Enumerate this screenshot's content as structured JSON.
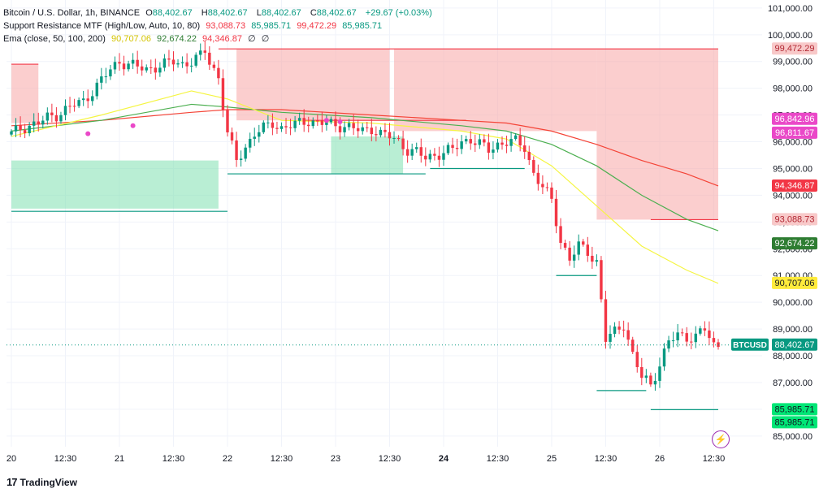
{
  "legend": {
    "line1": {
      "title": "Bitcoin / U.S. Dollar, 1h, BINANCE",
      "o_label": "O",
      "o": "88,402.67",
      "h_label": "H",
      "h": "88,402.67",
      "l_label": "L",
      "l": "88,402.67",
      "c_label": "C",
      "c": "88,402.67",
      "chg": "+29.67 (+0.03%)"
    },
    "line2": {
      "name": "Support Resistance MTF (High/Low, Auto, 10, 80)",
      "v1": "93,088.73",
      "v2": "85,985.71",
      "v3": "99,472.29",
      "v4": "85,985.71"
    },
    "line3": {
      "name": "Ema (close, 50, 100, 200)",
      "v1": "90,707.06",
      "v2": "92,674.22",
      "v3": "94,346.87",
      "v4": "∅",
      "v5": "∅"
    }
  },
  "footer": {
    "brand": "TradingView",
    "logo": "17"
  },
  "colors": {
    "up": "#089981",
    "down": "#f23645",
    "ema50": "#f5f542",
    "ema100": "#4caf50",
    "ema200": "#f44336",
    "res_zone": "#f8a5a5",
    "sup_zone": "#7fe0b0",
    "magenta": "#ea48c8",
    "grid": "#f0f3fa",
    "axis_text": "#131722"
  },
  "chart_data": {
    "type": "candlestick",
    "title": "Bitcoin / U.S. Dollar, 1h, BINANCE",
    "ylim": [
      84600,
      101300
    ],
    "y_ticks": [
      85000,
      86000,
      87000,
      88000,
      89000,
      90000,
      91000,
      92000,
      93000,
      94000,
      95000,
      96000,
      97000,
      98000,
      99000,
      100000,
      101000
    ],
    "y_tick_labels": [
      "85,000.00",
      "86,000.00",
      "87,000.00",
      "88,000.00",
      "89,000.00",
      "90,000.00",
      "91,000.00",
      "92,000.00",
      "93,000.00",
      "94,000.00",
      "95,000.00",
      "96,000.00",
      "97,000.00",
      "98,000.00",
      "99,000.00",
      "100,000.00",
      "101,000.00"
    ],
    "x_ticks": [
      {
        "i": 0,
        "label": "20",
        "bold": false
      },
      {
        "i": 12,
        "label": "12:30",
        "bold": false
      },
      {
        "i": 24,
        "label": "21",
        "bold": false
      },
      {
        "i": 36,
        "label": "12:30",
        "bold": false
      },
      {
        "i": 48,
        "label": "22",
        "bold": false
      },
      {
        "i": 60,
        "label": "12:30",
        "bold": false
      },
      {
        "i": 72,
        "label": "23",
        "bold": false
      },
      {
        "i": 84,
        "label": "12:30",
        "bold": false
      },
      {
        "i": 96,
        "label": "24",
        "bold": true
      },
      {
        "i": 108,
        "label": "12:30",
        "bold": false
      },
      {
        "i": 120,
        "label": "25",
        "bold": false
      },
      {
        "i": 132,
        "label": "12:30",
        "bold": false
      },
      {
        "i": 144,
        "label": "26",
        "bold": false
      },
      {
        "i": 156,
        "label": "12:30",
        "bold": false
      }
    ],
    "close_points": [
      [
        0,
        96300
      ],
      [
        2,
        96500
      ],
      [
        4,
        96600
      ],
      [
        6,
        96700
      ],
      [
        8,
        96900
      ],
      [
        10,
        97000
      ],
      [
        12,
        97200
      ],
      [
        14,
        97400
      ],
      [
        16,
        97500
      ],
      [
        18,
        97900
      ],
      [
        20,
        98300
      ],
      [
        22,
        98700
      ],
      [
        24,
        99000
      ],
      [
        26,
        98900
      ],
      [
        28,
        98800
      ],
      [
        30,
        98700
      ],
      [
        32,
        98800
      ],
      [
        34,
        98900
      ],
      [
        36,
        99000
      ],
      [
        38,
        98900
      ],
      [
        40,
        99000
      ],
      [
        42,
        99200
      ],
      [
        43,
        99400
      ],
      [
        44,
        99000
      ],
      [
        46,
        98400
      ],
      [
        48,
        96300
      ],
      [
        50,
        95300
      ],
      [
        52,
        95800
      ],
      [
        54,
        96300
      ],
      [
        56,
        96500
      ],
      [
        58,
        96700
      ],
      [
        60,
        96500
      ],
      [
        62,
        96600
      ],
      [
        64,
        96700
      ],
      [
        66,
        96800
      ],
      [
        68,
        96700
      ],
      [
        70,
        96700
      ],
      [
        72,
        96600
      ],
      [
        74,
        96600
      ],
      [
        76,
        96500
      ],
      [
        78,
        96400
      ],
      [
        80,
        96500
      ],
      [
        82,
        96300
      ],
      [
        84,
        96200
      ],
      [
        86,
        96000
      ],
      [
        88,
        95700
      ],
      [
        90,
        95600
      ],
      [
        92,
        95400
      ],
      [
        94,
        95500
      ],
      [
        96,
        95600
      ],
      [
        98,
        95700
      ],
      [
        100,
        96000
      ],
      [
        102,
        96100
      ],
      [
        104,
        95900
      ],
      [
        106,
        95700
      ],
      [
        108,
        95900
      ],
      [
        110,
        96000
      ],
      [
        112,
        96000
      ],
      [
        114,
        95800
      ],
      [
        116,
        94800
      ],
      [
        118,
        94300
      ],
      [
        120,
        93800
      ],
      [
        122,
        92300
      ],
      [
        124,
        91600
      ],
      [
        126,
        92100
      ],
      [
        128,
        91900
      ],
      [
        130,
        91500
      ],
      [
        132,
        88600
      ],
      [
        134,
        88900
      ],
      [
        136,
        89200
      ],
      [
        138,
        88000
      ],
      [
        140,
        87200
      ],
      [
        141,
        87100
      ],
      [
        142,
        86900
      ],
      [
        143,
        87300
      ],
      [
        144,
        87700
      ],
      [
        146,
        88500
      ],
      [
        148,
        88800
      ],
      [
        150,
        88700
      ],
      [
        152,
        88700
      ],
      [
        154,
        89000
      ],
      [
        156,
        88400
      ]
    ],
    "ema50": [
      [
        0,
        96200
      ],
      [
        20,
        97000
      ],
      [
        40,
        97900
      ],
      [
        48,
        97600
      ],
      [
        60,
        96800
      ],
      [
        80,
        96700
      ],
      [
        100,
        96400
      ],
      [
        110,
        96100
      ],
      [
        120,
        95100
      ],
      [
        130,
        93600
      ],
      [
        140,
        92100
      ],
      [
        150,
        91200
      ],
      [
        157,
        90707
      ]
    ],
    "ema100": [
      [
        0,
        96400
      ],
      [
        20,
        96800
      ],
      [
        40,
        97400
      ],
      [
        48,
        97300
      ],
      [
        60,
        97100
      ],
      [
        80,
        96900
      ],
      [
        100,
        96600
      ],
      [
        110,
        96400
      ],
      [
        120,
        95900
      ],
      [
        130,
        95100
      ],
      [
        140,
        94000
      ],
      [
        150,
        93100
      ],
      [
        157,
        92674
      ]
    ],
    "ema200": [
      [
        0,
        96600
      ],
      [
        20,
        96800
      ],
      [
        40,
        97100
      ],
      [
        48,
        97200
      ],
      [
        60,
        97200
      ],
      [
        80,
        97000
      ],
      [
        100,
        96800
      ],
      [
        110,
        96700
      ],
      [
        120,
        96400
      ],
      [
        130,
        95900
      ],
      [
        140,
        95300
      ],
      [
        150,
        94800
      ],
      [
        157,
        94347
      ]
    ],
    "resistance_zones": [
      {
        "x0": 0,
        "x1": 6,
        "y0": 96700,
        "y1": 98900
      },
      {
        "x0": 50,
        "x1": 84,
        "y0": 96800,
        "y1": 99472
      },
      {
        "x0": 85,
        "x1": 130,
        "y0": 96400,
        "y1": 99472
      },
      {
        "x0": 130,
        "x1": 157,
        "y0": 93089,
        "y1": 99472
      }
    ],
    "support_zones": [
      {
        "x0": 0,
        "x1": 46,
        "y0": 93500,
        "y1": 95300
      },
      {
        "x0": 71,
        "x1": 87,
        "y0": 94800,
        "y1": 96200
      }
    ],
    "support_lines": [
      {
        "x0": 0,
        "x1": 48,
        "y": 93400
      },
      {
        "x0": 48,
        "x1": 92,
        "y": 94800
      },
      {
        "x0": 93,
        "x1": 114,
        "y": 95000
      },
      {
        "x0": 121,
        "x1": 130,
        "y": 91000
      },
      {
        "x0": 130,
        "x1": 141,
        "y": 86700
      },
      {
        "x0": 142,
        "x1": 157,
        "y": 85986
      }
    ],
    "resistance_lines": [
      {
        "x0": 0,
        "x1": 6,
        "y": 98900
      },
      {
        "x0": 46,
        "x1": 157,
        "y": 99472
      },
      {
        "x0": 65,
        "x1": 101,
        "y": 96800
      },
      {
        "x0": 142,
        "x1": 157,
        "y": 93089
      }
    ],
    "cross_markers": [
      [
        17,
        96300
      ],
      [
        27,
        96600
      ],
      [
        70,
        96800
      ],
      [
        73,
        96750
      ]
    ],
    "price_labels": [
      {
        "value": 99472.29,
        "text": "99,472.29",
        "bg": "#f8c9c9",
        "fg": "#b22833"
      },
      {
        "value": 96842.96,
        "text": "96,842.96",
        "bg": "#ea48c8",
        "fg": "#ffffff"
      },
      {
        "value": 96811.67,
        "text": "96,811.67",
        "bg": "#ea48c8",
        "fg": "#ffffff"
      },
      {
        "value": 94346.87,
        "text": "94,346.87",
        "bg": "#f23645",
        "fg": "#ffffff"
      },
      {
        "value": 93088.73,
        "text": "93,088.73",
        "bg": "#f8c9c9",
        "fg": "#b22833"
      },
      {
        "value": 92674.22,
        "text": "92,674.22",
        "bg": "#2e7d32",
        "fg": "#ffffff"
      },
      {
        "value": 90707.06,
        "text": "90,707.06",
        "bg": "#ffeb3b",
        "fg": "#131722"
      },
      {
        "value": 88402.67,
        "text": "88,402.67",
        "bg": "#089981",
        "fg": "#ffffff"
      },
      {
        "value": 85985.71,
        "text": "85,985.71",
        "bg": "#00e676",
        "fg": "#131722"
      },
      {
        "value": 85985.71,
        "text": "85,985.71",
        "bg": "#00e676",
        "fg": "#131722"
      }
    ],
    "symbol_tag": "BTCUSD",
    "last_price": 88402.67
  }
}
